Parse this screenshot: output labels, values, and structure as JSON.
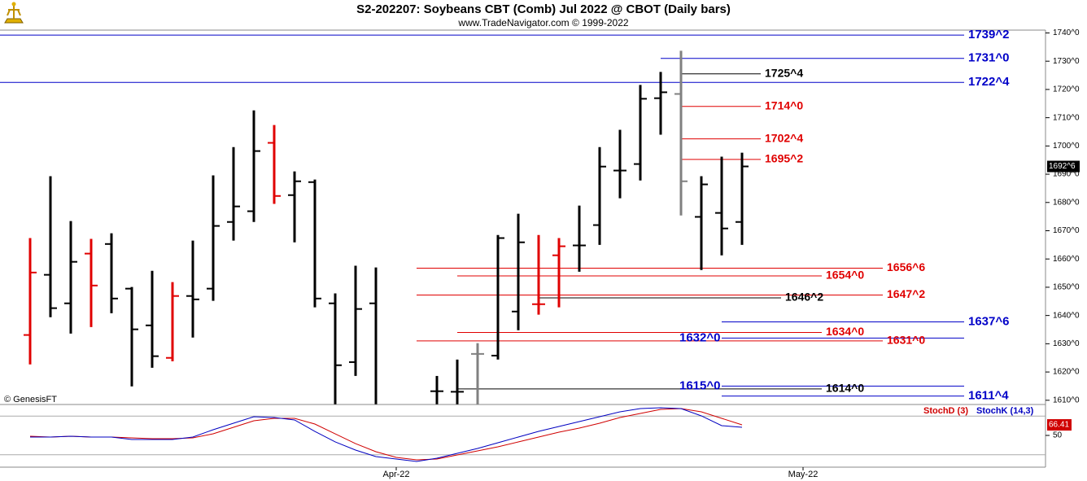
{
  "header": {
    "title": "S2-202207:  Soybeans CBT (Comb) Jul 2022 @ CBOT  (Daily bars)",
    "subtitle": "www.TradeNavigator.com © 1999-2022",
    "copyright": "© GenesisFT"
  },
  "chart_data": [
    {
      "type": "ohlc",
      "categories": [
        null,
        null,
        null,
        null,
        null,
        null,
        null,
        null,
        null,
        null,
        null,
        null,
        null,
        null,
        null,
        null,
        null,
        null,
        "Apr-22",
        null,
        null,
        null,
        null,
        null,
        null,
        null,
        null,
        null,
        null,
        null,
        null,
        null,
        null,
        null,
        null,
        null,
        null,
        null,
        "May-22",
        null,
        null,
        null,
        null,
        null,
        null,
        null,
        null,
        null,
        null,
        null,
        null
      ],
      "open": [
        1633.1,
        1654.4,
        1644.3,
        1661.9,
        1665.3,
        1649.5,
        1636.5,
        1625,
        1646.9,
        1649.5,
        1673.1,
        1676.9,
        1701.1,
        1682.6,
        1687.2,
        1644.3,
        1623.5,
        1644.3,
        null,
        null,
        1613.2,
        1613,
        1626.4,
        1625.8,
        1641.4,
        1644,
        1661.3,
        1664.8,
        1672,
        1691.3,
        1693.6,
        1716.9,
        1718.4,
        1674.9,
        1676.3,
        1673.1,
        null,
        null,
        null,
        null,
        null,
        null,
        null,
        null,
        null,
        null,
        null,
        null,
        null,
        null,
        null
      ],
      "high": [
        1667.4,
        1689.3,
        1673.4,
        1667.1,
        1669.1,
        1650.1,
        1655.8,
        1651.8,
        1666.5,
        1689.6,
        1699.6,
        1712.6,
        1707.4,
        1691,
        1688.1,
        1647.8,
        1657.6,
        1657,
        null,
        null,
        1618.6,
        1624.4,
        1630.2,
        1668.5,
        1676,
        1668.5,
        1667.4,
        1678.9,
        1699.6,
        1705.7,
        1721.6,
        1726.2,
        1733.7,
        1689.3,
        1696.2,
        1697.6,
        null,
        null,
        null,
        null,
        null,
        null,
        null,
        null,
        null,
        null,
        null,
        null,
        null,
        null,
        null
      ],
      "low": [
        1622.7,
        1639.4,
        1633.6,
        1635.9,
        1640.8,
        1614.9,
        1621.5,
        1623.8,
        1632.2,
        1645.2,
        1666.5,
        1673.1,
        1679.5,
        1665.9,
        1642.9,
        1608.6,
        1618.6,
        1608.6,
        null,
        null,
        1608.6,
        1608.6,
        1608.6,
        1624.4,
        1634.8,
        1640.3,
        1642.9,
        1655.5,
        1665,
        1681.5,
        1687.8,
        1704,
        1675.4,
        1656.1,
        1661.3,
        1665,
        null,
        null,
        null,
        null,
        null,
        null,
        null,
        null,
        null,
        null,
        null,
        null,
        null,
        null,
        null
      ],
      "close": [
        1655.2,
        1642.6,
        1659,
        1650.6,
        1646,
        1635.1,
        1625.6,
        1646.9,
        1645.7,
        1671.7,
        1678.6,
        1698.2,
        1682.3,
        1687.5,
        1646,
        1622.4,
        1642.3,
        null,
        null,
        null,
        1613.2,
        1613,
        1626.4,
        1667.4,
        1665.9,
        1644,
        1664.5,
        1664.8,
        1692.7,
        1691.3,
        1716.7,
        1719,
        1687.5,
        1686.4,
        1670.8,
        1692.75,
        null,
        null,
        null,
        null,
        null,
        null,
        null,
        null,
        null,
        null,
        null,
        null,
        null,
        null,
        null
      ],
      "colors": [
        "#e00000",
        "#000000",
        "#000000",
        "#e00000",
        "#000000",
        "#000000",
        "#000000",
        "#e00000",
        "#000000",
        "#000000",
        "#000000",
        "#000000",
        "#e00000",
        "#000000",
        "#000000",
        "#000000",
        "#000000",
        "#000000",
        null,
        null,
        "#000000",
        "#000000",
        "#808080",
        "#000000",
        "#000000",
        "#e00000",
        "#e00000",
        "#000000",
        "#000000",
        "#000000",
        "#000000",
        "#000000",
        "#808080",
        "#000000",
        "#000000",
        "#000000",
        null,
        null,
        null,
        null,
        null,
        null,
        null,
        null,
        null,
        null,
        null,
        null,
        null,
        null,
        null
      ],
      "ylim": [
        1608.5,
        1741
      ],
      "yticks": [
        {
          "value": 1740,
          "label": "1740^0"
        },
        {
          "value": 1730,
          "label": "1730^0"
        },
        {
          "value": 1720,
          "label": "1720^0"
        },
        {
          "value": 1710,
          "label": "1710^0"
        },
        {
          "value": 1700,
          "label": "1700^0"
        },
        {
          "value": 1690,
          "label": "1690^0"
        },
        {
          "value": 1680,
          "label": "1680^0"
        },
        {
          "value": 1670,
          "label": "1670^0"
        },
        {
          "value": 1660,
          "label": "1660^0"
        },
        {
          "value": 1650,
          "label": "1650^0"
        },
        {
          "value": 1640,
          "label": "1640^0"
        },
        {
          "value": 1630,
          "label": "1630^0"
        },
        {
          "value": 1620,
          "label": "1620^0"
        },
        {
          "value": 1610,
          "label": "1610^0"
        }
      ],
      "last_price": {
        "value": 1692.75,
        "label": "1692^6"
      },
      "levels": [
        {
          "value": 1739.25,
          "label": "1739^2",
          "color": "#0000c8"
        },
        {
          "value": 1731,
          "label": "1731^0",
          "color": "#0000c8"
        },
        {
          "value": 1725.5,
          "label": "1725^4",
          "color": "#000000"
        },
        {
          "value": 1722.5,
          "label": "1722^4",
          "color": "#0000c8"
        },
        {
          "value": 1714,
          "label": "1714^0",
          "color": "#e00000"
        },
        {
          "value": 1702.5,
          "label": "1702^4",
          "color": "#e00000"
        },
        {
          "value": 1695.25,
          "label": "1695^2",
          "color": "#e00000"
        },
        {
          "value": 1656.75,
          "label": "1656^6",
          "color": "#e00000"
        },
        {
          "value": 1654,
          "label": "1654^0",
          "color": "#e00000"
        },
        {
          "value": 1647.25,
          "label": "1647^2",
          "color": "#e00000"
        },
        {
          "value": 1646.25,
          "label": "1646^2",
          "color": "#000000"
        },
        {
          "value": 1637.75,
          "label": "1637^6",
          "color": "#0000c8"
        },
        {
          "value": 1634,
          "label": "1634^0",
          "color": "#e00000"
        },
        {
          "value": 1632,
          "label": "1632^0",
          "color": "#0000c8"
        },
        {
          "value": 1631,
          "label": "1631^0",
          "color": "#e00000"
        },
        {
          "value": 1615,
          "label": "1615^0",
          "color": "#0000c8"
        },
        {
          "value": 1614,
          "label": "1614^0",
          "color": "#000000"
        },
        {
          "value": 1611.5,
          "label": "1611^4",
          "color": "#0000c8"
        }
      ]
    },
    {
      "type": "line",
      "series": [
        {
          "name": "StochD (3)",
          "color": "#d00000",
          "values": [
            48.7,
            47.5,
            48.7,
            47.5,
            47.5,
            46.2,
            44.9,
            44.9,
            46.2,
            52.5,
            62.7,
            72.8,
            76.6,
            76.6,
            67.7,
            52.5,
            37.3,
            24.7,
            15.8,
            12,
            13.3,
            19.6,
            25.9,
            32.3,
            39.9,
            47.5,
            55.1,
            61.4,
            69,
            77.8,
            84.2,
            90.5,
            91.8,
            86.7,
            76.6,
            66.41,
            null,
            null,
            null,
            null,
            null,
            null,
            null,
            null,
            null,
            null,
            null,
            null,
            null,
            null,
            null
          ]
        },
        {
          "name": "StochK (14,3)",
          "color": "#0000c0",
          "values": [
            47.5,
            47.5,
            48.7,
            47.5,
            47.5,
            43.7,
            43.7,
            43.7,
            47.5,
            58.9,
            69,
            79.1,
            77.8,
            74.1,
            56.3,
            39.9,
            27.2,
            17.1,
            13.3,
            9.5,
            14.6,
            22.2,
            29.7,
            38.6,
            47.5,
            56.3,
            63.9,
            71.5,
            79.1,
            86.7,
            91.8,
            93,
            91.8,
            80.4,
            65.2,
            62.7,
            null,
            null,
            null,
            null,
            null,
            null,
            null,
            null,
            null,
            null,
            null,
            null,
            null,
            null,
            null
          ]
        }
      ],
      "ylim": [
        0,
        100
      ],
      "yticks": [
        50
      ],
      "levels": [
        20,
        80
      ],
      "last_value": {
        "value": 66.41,
        "label": "66.41"
      }
    }
  ]
}
